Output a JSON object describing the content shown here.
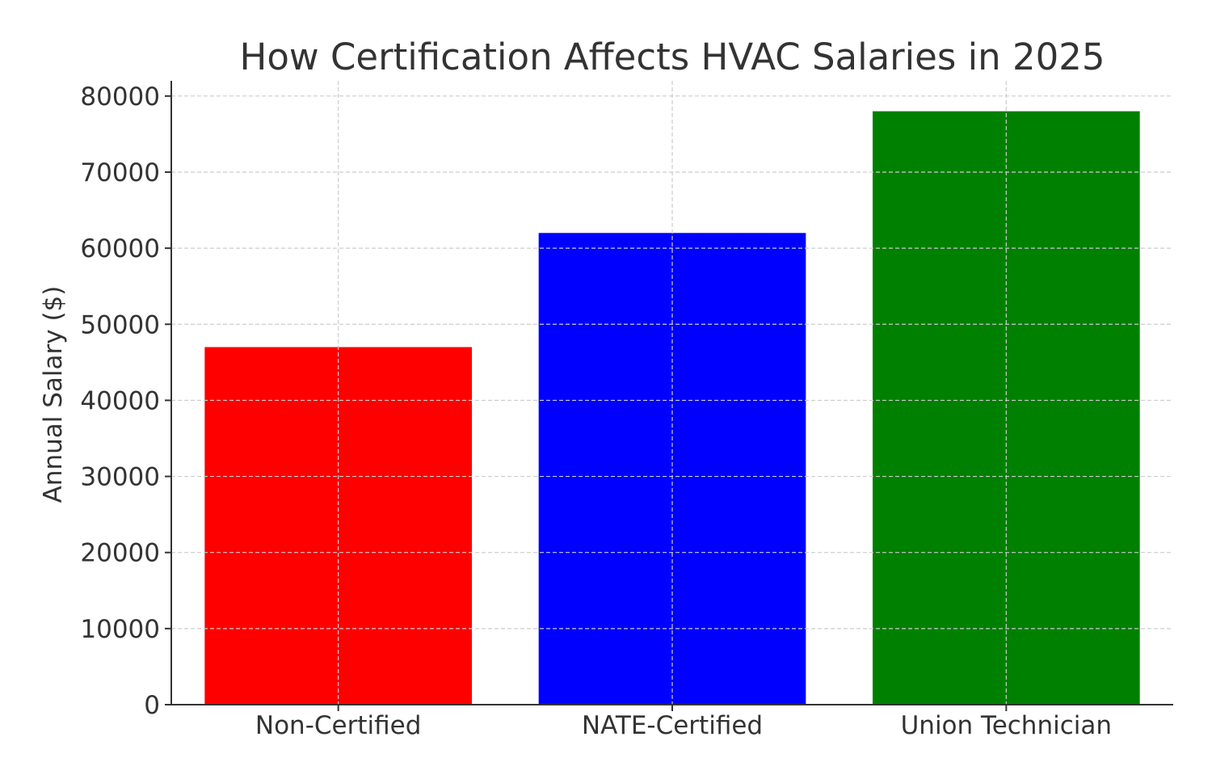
{
  "chart_data": {
    "type": "bar",
    "title": "How Certification Affects HVAC Salaries in 2025",
    "xlabel": "",
    "ylabel": "Annual Salary ($)",
    "categories": [
      "Non-Certified",
      "NATE-Certified",
      "Union Technician"
    ],
    "values": [
      47000,
      62000,
      78000
    ],
    "colors": [
      "#ff0000",
      "#0000ff",
      "#008000"
    ],
    "ylim": [
      0,
      82000
    ],
    "yticks": [
      "0",
      "10000",
      "20000",
      "30000",
      "40000",
      "50000",
      "60000",
      "70000",
      "80000"
    ],
    "grid": true,
    "legend": "none"
  }
}
